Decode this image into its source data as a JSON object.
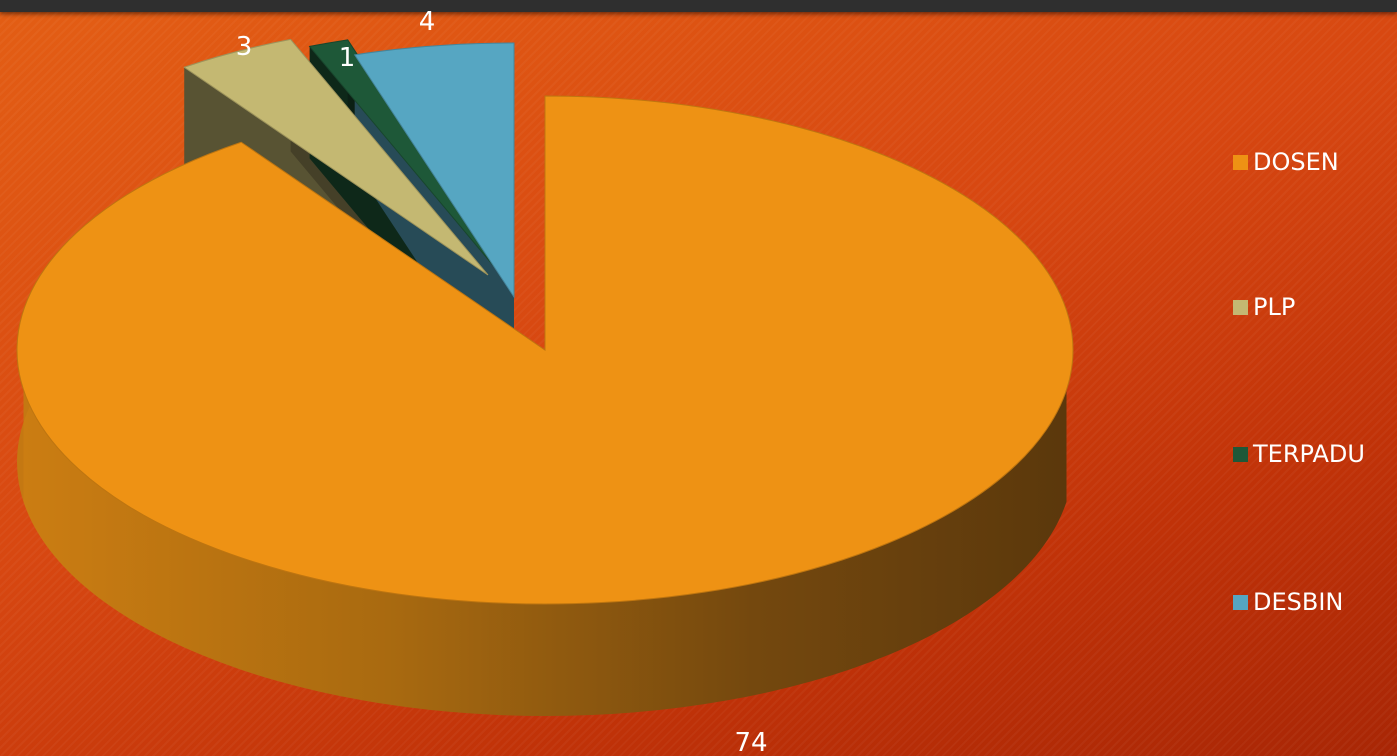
{
  "chart_data": {
    "type": "pie",
    "title": "",
    "categories": [
      "DOSEN",
      "PLP",
      "TERPADU",
      "DESBIN"
    ],
    "values": [
      74,
      3,
      1,
      4
    ],
    "data_labels": [
      "74",
      "3",
      "1",
      "4"
    ],
    "colors": [
      "#ee9214",
      "#c4b872",
      "#1e5838",
      "#56a6c2"
    ],
    "exploded": [
      "DESBIN",
      "TERPADU",
      "PLP"
    ],
    "style": "3D pie",
    "legend": {
      "placement": "right"
    }
  },
  "legend": {
    "items": [
      {
        "label": "DOSEN",
        "color": "#ee9214"
      },
      {
        "label": "PLP",
        "color": "#c4b872"
      },
      {
        "label": "TERPADU",
        "color": "#1e5838"
      },
      {
        "label": "DESBIN",
        "color": "#56a6c2"
      }
    ]
  },
  "theme": {
    "background": "#d74711",
    "topbar": "#2f2f2f",
    "text": "#ffffff"
  }
}
